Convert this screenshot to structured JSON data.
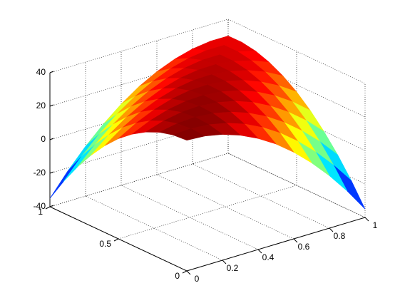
{
  "chart_data": {
    "type": "surface",
    "x": [
      0,
      0.1,
      0.2,
      0.3,
      0.4,
      0.5,
      0.6,
      0.7,
      0.8,
      0.9,
      1
    ],
    "y": [
      0,
      0.1,
      0.2,
      0.3,
      0.4,
      0.5,
      0.6,
      0.7,
      0.8,
      0.9,
      1
    ],
    "z": [
      [
        38,
        37.3,
        35.1,
        31.4,
        26.3,
        19.8,
        11.7,
        2.2,
        -8.7,
        -21.1,
        -35
      ],
      [
        37.3,
        37.9,
        37.1,
        34.8,
        31.1,
        25.9,
        19.3,
        11.2,
        1.6,
        -9.4,
        -21.9
      ],
      [
        35.1,
        37.1,
        37.7,
        36.8,
        34.4,
        30.6,
        25.4,
        18.6,
        10.4,
        0.8,
        -10.3
      ],
      [
        31.4,
        34.8,
        36.8,
        37.3,
        36.3,
        33.9,
        30.0,
        24.6,
        17.8,
        9.6,
        -0.2
      ],
      [
        26.3,
        31.1,
        34.4,
        36.3,
        36.7,
        35.7,
        33.2,
        29.2,
        23.8,
        16.9,
        8.5
      ],
      [
        19.8,
        25.9,
        30.6,
        33.9,
        35.7,
        36,
        34.9,
        32.3,
        28.2,
        22.7,
        15.8
      ],
      [
        11.7,
        19.3,
        25.4,
        30.0,
        33.2,
        34.9,
        35.1,
        33.9,
        31.2,
        27.1,
        21.5
      ],
      [
        2.2,
        11.2,
        18.6,
        24.6,
        29.2,
        32.3,
        33.9,
        34.1,
        32.8,
        30.0,
        25.8
      ],
      [
        -8.7,
        1.6,
        10.4,
        17.8,
        23.8,
        28.2,
        31.2,
        32.8,
        32.9,
        31.5,
        28.7
      ],
      [
        -21.1,
        -9.4,
        0.8,
        9.6,
        16.9,
        22.7,
        27.1,
        30.0,
        31.5,
        31.5,
        30.1
      ],
      [
        -35,
        -21.9,
        -10.3,
        -0.2,
        8.5,
        15.8,
        21.5,
        25.8,
        28.7,
        30.1,
        30
      ]
    ],
    "xlim": [
      0,
      1
    ],
    "ylim": [
      0,
      1
    ],
    "zlim": [
      -40,
      40
    ],
    "xticks": [
      0,
      0.2,
      0.4,
      0.6,
      0.8,
      1
    ],
    "yticks": [
      0,
      0.5,
      1
    ],
    "zticks": [
      -40,
      -20,
      0,
      20,
      40
    ],
    "grid": true,
    "colormap": "jet"
  }
}
